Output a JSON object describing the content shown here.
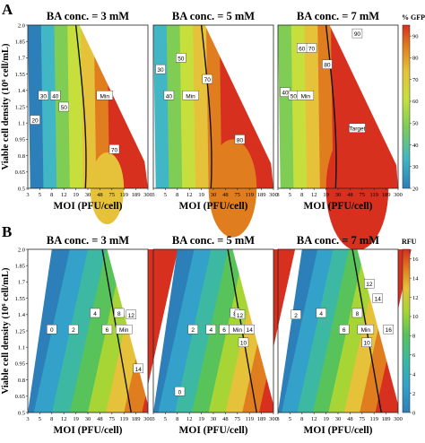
{
  "panel_a_letter": "A",
  "panel_b_letter": "B",
  "legend_a_title": "% GFP",
  "legend_b_title": "RFU",
  "colors": {
    "viridis_ramp": [
      "#440154",
      "#3b528b",
      "#21908c",
      "#5dc963",
      "#fde725"
    ],
    "gfp_ramp": [
      "#2c7fb8",
      "#41b6c4",
      "#7fcd55",
      "#c7df3c",
      "#e6c13a",
      "#e07e1f",
      "#d7301f"
    ],
    "rfu_ramp": [
      "#2c7fb8",
      "#33a1c9",
      "#3cb8a3",
      "#58c35a",
      "#a6d535",
      "#e6c13a",
      "#e07e1f",
      "#d7301f"
    ],
    "frame": "#222222",
    "contour": "#111111"
  },
  "chart_data": [
    {
      "panel": "A",
      "type": "heatmap",
      "subplots": [
        {
          "title": "BA conc. = 3 mM",
          "contour_labels": [
            "20",
            "30",
            "40",
            "50",
            "Min",
            "70"
          ],
          "feasible_region": "triangle, apex near MOI 300, density 2.0"
        },
        {
          "title": "BA conc. = 5 mM",
          "contour_labels": [
            "30",
            "40",
            "50",
            "Min",
            "70",
            "80"
          ],
          "feasible_region": "triangle, apex near MOI 300, density 2.0"
        },
        {
          "title": "BA conc. = 7 mM",
          "contour_labels": [
            "40",
            "50",
            "Min",
            "60",
            "70",
            "80",
            "90",
            "Target"
          ],
          "feasible_region": "triangle, apex near MOI 300, density 2.0"
        }
      ],
      "xlabel": "MOI (PFU/cell)",
      "ylabel": "Viable cell density (10⁶ cell/mL)",
      "xticks": [
        "3",
        "5",
        "8",
        "12",
        "19",
        "30",
        "48",
        "75",
        "119",
        "189",
        "300"
      ],
      "yticks": [
        "0.5",
        "0.65",
        "0.8",
        "0.95",
        "1.1",
        "1.25",
        "1.4",
        "1.55",
        "1.7",
        "1.85",
        "2.0"
      ],
      "ylim": [
        0.5,
        2.0
      ],
      "colorbar": {
        "title": "% GFP",
        "ticks": [
          "20",
          "30",
          "40",
          "50",
          "60",
          "70",
          "80",
          "90"
        ],
        "range": [
          20,
          95
        ]
      }
    },
    {
      "panel": "B",
      "type": "heatmap",
      "subplots": [
        {
          "title": "BA conc. = 3 mM",
          "contour_labels": [
            "0",
            "2",
            "4",
            "6",
            "8",
            "Min",
            "12",
            "14"
          ]
        },
        {
          "title": "BA conc. = 5 mM",
          "contour_labels": [
            "0",
            "2",
            "4",
            "6",
            "8",
            "Min",
            "10",
            "12",
            "14"
          ]
        },
        {
          "title": "BA conc. = 7 mM",
          "contour_labels": [
            "2",
            "4",
            "6",
            "8",
            "Min",
            "10",
            "12",
            "14",
            "16"
          ]
        }
      ],
      "xlabel": "MOI (PFU/cell)",
      "ylabel": "Viable cell density (10⁶ cell/mL)",
      "xticks": [
        "3",
        "5",
        "8",
        "12",
        "19",
        "30",
        "48",
        "75",
        "119",
        "189",
        "300"
      ],
      "yticks": [
        "0.5",
        "0.65",
        "0.8",
        "0.95",
        "1.1",
        "1.25",
        "1.4",
        "1.55",
        "1.7",
        "1.85",
        "2.0"
      ],
      "ylim": [
        0.5,
        2.0
      ],
      "colorbar": {
        "title": "RFU",
        "ticks": [
          "0",
          "2",
          "4",
          "6",
          "8",
          "10",
          "12",
          "14",
          "16"
        ],
        "range": [
          0,
          17
        ]
      }
    }
  ]
}
